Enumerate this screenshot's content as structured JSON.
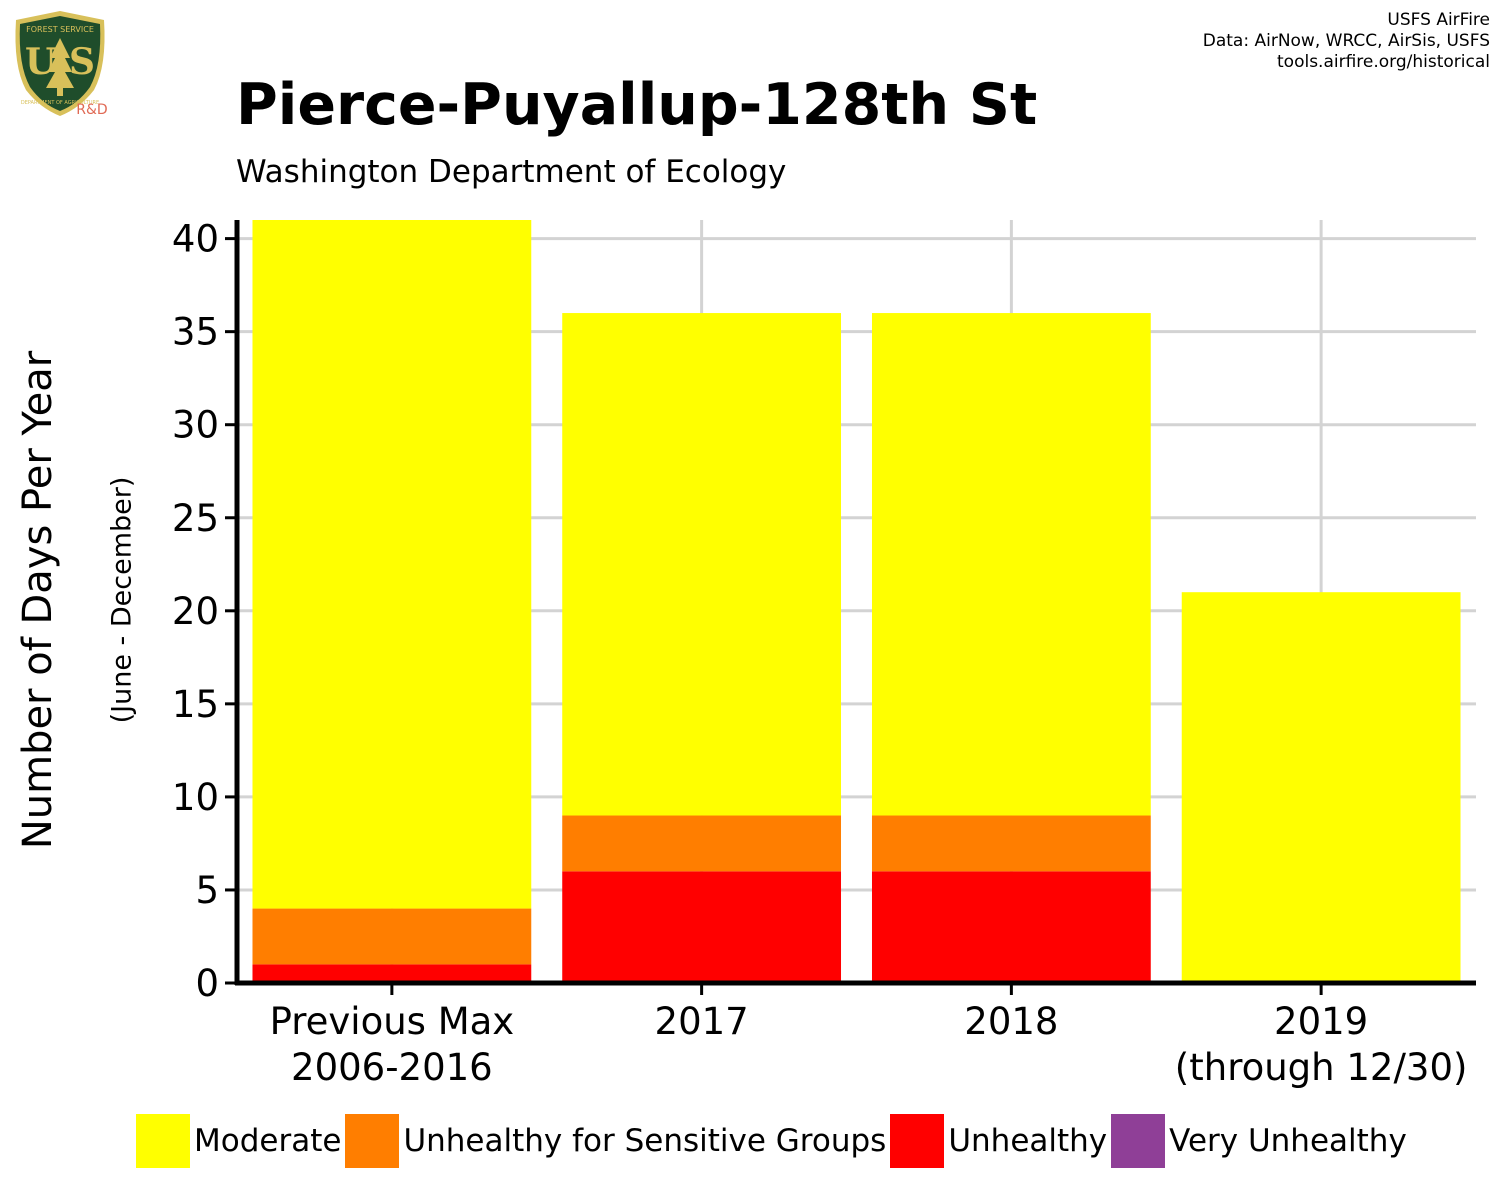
{
  "logo": {
    "top_text": "FOREST SERVICE",
    "letters": "U S",
    "bottom_text": "DEPARTMENT OF AGRICULTURE",
    "tag": "R&D",
    "colors": {
      "shield": "#1f4d2b",
      "border": "#d8c05a",
      "tree": "#d8c05a",
      "tag": "#e06a55"
    }
  },
  "credits": [
    "USFS AirFire",
    "Data: AirNow, WRCC, AirSis, USFS",
    "tools.airfire.org/historical"
  ],
  "title": "Pierce-Puyallup-128th St",
  "subtitle": "Washington Department of Ecology",
  "chart_data": {
    "type": "bar",
    "stacked": true,
    "categories": [
      [
        "Previous Max",
        "2006-2016"
      ],
      [
        "2017"
      ],
      [
        "2018"
      ],
      [
        "2019",
        "(through 12/30)"
      ]
    ],
    "series": [
      {
        "name": "Unhealthy",
        "color": "#ff0000",
        "values": [
          1,
          6,
          6,
          0
        ]
      },
      {
        "name": "Unhealthy for Sensitive Groups",
        "color": "#ff7e00",
        "values": [
          3,
          3,
          3,
          0
        ]
      },
      {
        "name": "Moderate",
        "color": "#ffff00",
        "values": [
          37,
          27,
          27,
          21
        ]
      }
    ],
    "ylabel": "Number of Days Per Year",
    "ylabel_sub": "(June - December)",
    "ylim": [
      0,
      41
    ],
    "yticks": [
      0,
      5,
      10,
      15,
      20,
      25,
      30,
      35,
      40
    ],
    "grid": true,
    "legend_position": "bottom"
  },
  "legend": [
    {
      "label": "Moderate",
      "color": "#ffff00"
    },
    {
      "label": "Unhealthy for Sensitive Groups",
      "color": "#ff7e00"
    },
    {
      "label": "Unhealthy",
      "color": "#ff0000"
    },
    {
      "label": "Very Unhealthy",
      "color": "#8f3f97"
    }
  ]
}
